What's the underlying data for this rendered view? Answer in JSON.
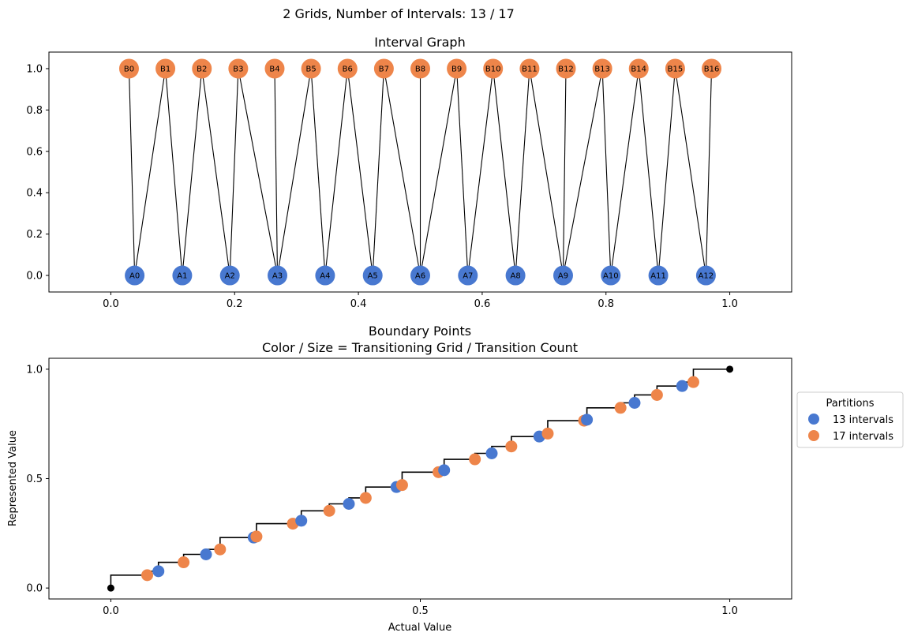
{
  "figure": {
    "suptitle": "2 Grids, Number of Intervals: 13 / 17"
  },
  "colors": {
    "grid_a": "#4878d0",
    "grid_b": "#ee854a",
    "edge": "#000000",
    "endpoint": "#000000"
  },
  "chart_data": [
    {
      "type": "graph",
      "title": "Interval Graph",
      "xlim": [
        -0.1,
        1.1
      ],
      "ylim": [
        -0.08,
        1.08
      ],
      "xticks": [
        "0.0",
        "0.2",
        "0.4",
        "0.6",
        "0.8",
        "1.0"
      ],
      "xtick_values": [
        0.0,
        0.2,
        0.4,
        0.6,
        0.8,
        1.0
      ],
      "yticks": [
        "0.0",
        "0.2",
        "0.4",
        "0.6",
        "0.8",
        "1.0"
      ],
      "ytick_values": [
        0.0,
        0.2,
        0.4,
        0.6,
        0.8,
        1.0
      ],
      "nodes_a": [
        {
          "label": "A0",
          "x": 0.0385,
          "y": 0
        },
        {
          "label": "A1",
          "x": 0.1154,
          "y": 0
        },
        {
          "label": "A2",
          "x": 0.1923,
          "y": 0
        },
        {
          "label": "A3",
          "x": 0.2692,
          "y": 0
        },
        {
          "label": "A4",
          "x": 0.3462,
          "y": 0
        },
        {
          "label": "A5",
          "x": 0.4231,
          "y": 0
        },
        {
          "label": "A6",
          "x": 0.5,
          "y": 0
        },
        {
          "label": "A7",
          "x": 0.5769,
          "y": 0
        },
        {
          "label": "A8",
          "x": 0.6538,
          "y": 0
        },
        {
          "label": "A9",
          "x": 0.7308,
          "y": 0
        },
        {
          "label": "A10",
          "x": 0.8077,
          "y": 0
        },
        {
          "label": "A11",
          "x": 0.8846,
          "y": 0
        },
        {
          "label": "A12",
          "x": 0.9615,
          "y": 0
        }
      ],
      "nodes_b": [
        {
          "label": "B0",
          "x": 0.0294,
          "y": 1
        },
        {
          "label": "B1",
          "x": 0.0882,
          "y": 1
        },
        {
          "label": "B2",
          "x": 0.1471,
          "y": 1
        },
        {
          "label": "B3",
          "x": 0.2059,
          "y": 1
        },
        {
          "label": "B4",
          "x": 0.2647,
          "y": 1
        },
        {
          "label": "B5",
          "x": 0.3235,
          "y": 1
        },
        {
          "label": "B6",
          "x": 0.3824,
          "y": 1
        },
        {
          "label": "B7",
          "x": 0.4412,
          "y": 1
        },
        {
          "label": "B8",
          "x": 0.5,
          "y": 1
        },
        {
          "label": "B9",
          "x": 0.5588,
          "y": 1
        },
        {
          "label": "B10",
          "x": 0.6176,
          "y": 1
        },
        {
          "label": "B11",
          "x": 0.6765,
          "y": 1
        },
        {
          "label": "B12",
          "x": 0.7353,
          "y": 1
        },
        {
          "label": "B13",
          "x": 0.7941,
          "y": 1
        },
        {
          "label": "B14",
          "x": 0.8529,
          "y": 1
        },
        {
          "label": "B15",
          "x": 0.9118,
          "y": 1
        },
        {
          "label": "B16",
          "x": 0.9706,
          "y": 1
        }
      ],
      "edges": [
        [
          "A0",
          "B0"
        ],
        [
          "A0",
          "B1"
        ],
        [
          "A1",
          "B1"
        ],
        [
          "A1",
          "B2"
        ],
        [
          "A2",
          "B2"
        ],
        [
          "A2",
          "B3"
        ],
        [
          "A3",
          "B3"
        ],
        [
          "A3",
          "B4"
        ],
        [
          "A3",
          "B5"
        ],
        [
          "A4",
          "B5"
        ],
        [
          "A4",
          "B6"
        ],
        [
          "A5",
          "B6"
        ],
        [
          "A5",
          "B7"
        ],
        [
          "A6",
          "B7"
        ],
        [
          "A6",
          "B8"
        ],
        [
          "A6",
          "B9"
        ],
        [
          "A7",
          "B9"
        ],
        [
          "A7",
          "B10"
        ],
        [
          "A8",
          "B10"
        ],
        [
          "A8",
          "B11"
        ],
        [
          "A9",
          "B11"
        ],
        [
          "A9",
          "B12"
        ],
        [
          "A9",
          "B13"
        ],
        [
          "A10",
          "B13"
        ],
        [
          "A10",
          "B14"
        ],
        [
          "A11",
          "B14"
        ],
        [
          "A11",
          "B15"
        ],
        [
          "A12",
          "B15"
        ],
        [
          "A12",
          "B16"
        ]
      ]
    },
    {
      "type": "scatter",
      "title_line1": "Boundary Points",
      "title_line2": "Color / Size = Transitioning Grid / Transition Count",
      "xlabel": "Actual Value",
      "ylabel": "Represented Value",
      "xlim": [
        -0.1,
        1.1
      ],
      "ylim": [
        -0.05,
        1.05
      ],
      "xticks": [
        "0.0",
        "0.5",
        "1.0"
      ],
      "xtick_values": [
        0.0,
        0.5,
        1.0
      ],
      "yticks": [
        "0.0",
        "0.5",
        "1.0"
      ],
      "ytick_values": [
        0.0,
        0.5,
        1.0
      ],
      "step_points": [
        [
          0,
          0
        ],
        [
          0,
          0.0588
        ],
        [
          0.0588,
          0.0588
        ],
        [
          0.0769,
          0.0769
        ],
        [
          0.1176,
          0.1176
        ],
        [
          0.1538,
          0.1538
        ],
        [
          0.1765,
          0.1765
        ],
        [
          0.2308,
          0.2308
        ],
        [
          0.2353,
          0.2353
        ],
        [
          0.2941,
          0.2941
        ],
        [
          0.3077,
          0.3077
        ],
        [
          0.3529,
          0.3529
        ],
        [
          0.3846,
          0.3846
        ],
        [
          0.4118,
          0.4118
        ],
        [
          0.4615,
          0.4615
        ],
        [
          0.4706,
          0.4706
        ],
        [
          0.5294,
          0.5294
        ],
        [
          0.5385,
          0.5385
        ],
        [
          0.5882,
          0.5882
        ],
        [
          0.6154,
          0.6154
        ],
        [
          0.6471,
          0.6471
        ],
        [
          0.6923,
          0.6923
        ],
        [
          0.7059,
          0.7059
        ],
        [
          0.7647,
          0.7647
        ],
        [
          0.7692,
          0.7692
        ],
        [
          0.8235,
          0.8235
        ],
        [
          0.8462,
          0.8462
        ],
        [
          0.8824,
          0.8824
        ],
        [
          0.9231,
          0.9231
        ],
        [
          0.9412,
          0.9412
        ],
        [
          1.0,
          1.0
        ]
      ],
      "endpoints": [
        [
          0,
          0
        ],
        [
          1,
          1
        ]
      ],
      "series": [
        {
          "name": "13 intervals",
          "color": "#4878d0",
          "points": [
            [
              0.0769,
              0.0769
            ],
            [
              0.1538,
              0.1538
            ],
            [
              0.2308,
              0.2308
            ],
            [
              0.3077,
              0.3077
            ],
            [
              0.3846,
              0.3846
            ],
            [
              0.4615,
              0.4615
            ],
            [
              0.5385,
              0.5385
            ],
            [
              0.6154,
              0.6154
            ],
            [
              0.6923,
              0.6923
            ],
            [
              0.7692,
              0.7692
            ],
            [
              0.8462,
              0.8462
            ],
            [
              0.9231,
              0.9231
            ]
          ]
        },
        {
          "name": "17 intervals",
          "color": "#ee854a",
          "points": [
            [
              0.0588,
              0.0588
            ],
            [
              0.1176,
              0.1176
            ],
            [
              0.1765,
              0.1765
            ],
            [
              0.2353,
              0.2353
            ],
            [
              0.2941,
              0.2941
            ],
            [
              0.3529,
              0.3529
            ],
            [
              0.4118,
              0.4118
            ],
            [
              0.4706,
              0.4706
            ],
            [
              0.5294,
              0.5294
            ],
            [
              0.5882,
              0.5882
            ],
            [
              0.6471,
              0.6471
            ],
            [
              0.7059,
              0.7059
            ],
            [
              0.7647,
              0.7647
            ],
            [
              0.8235,
              0.8235
            ],
            [
              0.8824,
              0.8824
            ],
            [
              0.9412,
              0.9412
            ]
          ]
        }
      ],
      "legend": {
        "title": "Partitions",
        "placement": "center-right outside"
      }
    }
  ]
}
